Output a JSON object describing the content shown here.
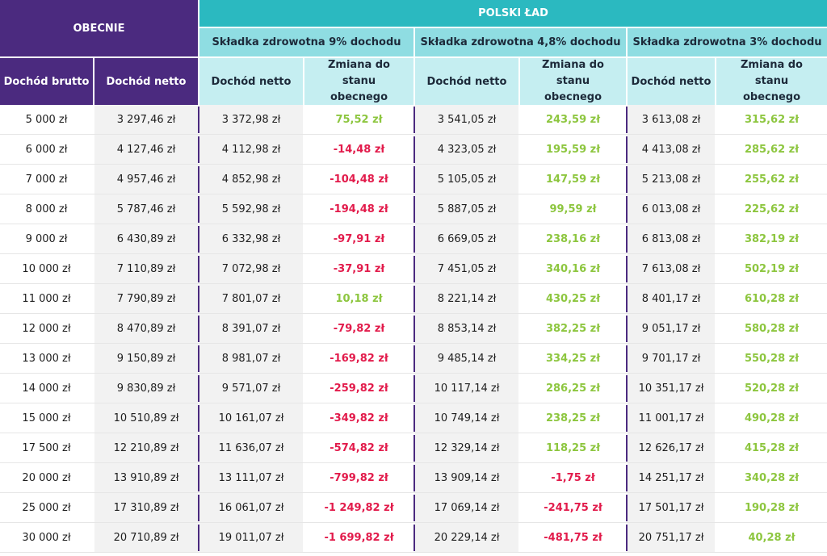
{
  "header": {
    "obecnie": "OBECNIE",
    "polski_lad": "POLSKI ŁAD",
    "group1": "Składka zdrowotna 9% dochodu",
    "group2": "Składka zdrowotna 4,8% dochodu",
    "group3": "Składka zdrowotna 3% dochodu",
    "col_brutto": "Dochód brutto",
    "col_netto": "Dochód netto",
    "col_netto_g1": "Dochód netto",
    "col_change_g1": "Zmiana do stanu obecnego",
    "col_netto_g2": "Dochód netto",
    "col_change_g2": "Zmiana do stanu obecnego",
    "col_netto_g3": "Dochód netto",
    "col_change_g3": "Zmiana do stanu obecnego"
  },
  "colors": {
    "purple": "#4b2a7f",
    "teal": "#2bb9c0",
    "positive": "#8dc63f",
    "negative": "#e21b4b"
  },
  "rows": [
    {
      "brutto": "5 000 zł",
      "netto": "3 297,46 zł",
      "n9": "3 372,98 zł",
      "d9": "75,52 zł",
      "n48": "3 541,05 zł",
      "d48": "243,59 zł",
      "n3": "3 613,08 zł",
      "d3": "315,62 zł"
    },
    {
      "brutto": "6 000 zł",
      "netto": "4 127,46 zł",
      "n9": "4 112,98 zł",
      "d9": "-14,48 zł",
      "n48": "4 323,05 zł",
      "d48": "195,59 zł",
      "n3": "4 413,08 zł",
      "d3": "285,62 zł"
    },
    {
      "brutto": "7 000 zł",
      "netto": "4 957,46 zł",
      "n9": "4 852,98 zł",
      "d9": "-104,48 zł",
      "n48": "5 105,05 zł",
      "d48": "147,59 zł",
      "n3": "5 213,08 zł",
      "d3": "255,62 zł"
    },
    {
      "brutto": "8 000 zł",
      "netto": "5 787,46 zł",
      "n9": "5 592,98 zł",
      "d9": "-194,48 zł",
      "n48": "5 887,05 zł",
      "d48": "99,59 zł",
      "n3": "6 013,08 zł",
      "d3": "225,62 zł"
    },
    {
      "brutto": "9 000 zł",
      "netto": "6 430,89 zł",
      "n9": "6 332,98 zł",
      "d9": "-97,91 zł",
      "n48": "6 669,05 zł",
      "d48": "238,16 zł",
      "n3": "6 813,08 zł",
      "d3": "382,19 zł"
    },
    {
      "brutto": "10 000 zł",
      "netto": "7 110,89 zł",
      "n9": "7 072,98 zł",
      "d9": "-37,91 zł",
      "n48": "7 451,05 zł",
      "d48": "340,16 zł",
      "n3": "7 613,08 zł",
      "d3": "502,19 zł"
    },
    {
      "brutto": "11 000 zł",
      "netto": "7 790,89 zł",
      "n9": "7 801,07 zł",
      "d9": "10,18 zł",
      "n48": "8 221,14 zł",
      "d48": "430,25 zł",
      "n3": "8 401,17 zł",
      "d3": "610,28 zł"
    },
    {
      "brutto": "12 000 zł",
      "netto": "8 470,89 zł",
      "n9": "8 391,07 zł",
      "d9": "-79,82 zł",
      "n48": "8 853,14 zł",
      "d48": "382,25 zł",
      "n3": "9 051,17 zł",
      "d3": "580,28 zł"
    },
    {
      "brutto": "13 000 zł",
      "netto": "9 150,89 zł",
      "n9": "8 981,07 zł",
      "d9": "-169,82 zł",
      "n48": "9 485,14 zł",
      "d48": "334,25 zł",
      "n3": "9 701,17 zł",
      "d3": "550,28 zł"
    },
    {
      "brutto": "14 000 zł",
      "netto": "9 830,89 zł",
      "n9": "9 571,07 zł",
      "d9": "-259,82 zł",
      "n48": "10 117,14 zł",
      "d48": "286,25 zł",
      "n3": "10 351,17 zł",
      "d3": "520,28 zł"
    },
    {
      "brutto": "15 000 zł",
      "netto": "10 510,89 zł",
      "n9": "10 161,07 zł",
      "d9": "-349,82 zł",
      "n48": "10 749,14 zł",
      "d48": "238,25 zł",
      "n3": "11 001,17 zł",
      "d3": "490,28 zł"
    },
    {
      "brutto": "17 500 zł",
      "netto": "12 210,89 zł",
      "n9": "11 636,07 zł",
      "d9": "-574,82 zł",
      "n48": "12 329,14 zł",
      "d48": "118,25 zł",
      "n3": "12 626,17 zł",
      "d3": "415,28 zł"
    },
    {
      "brutto": "20 000 zł",
      "netto": "13 910,89 zł",
      "n9": "13 111,07 zł",
      "d9": "-799,82 zł",
      "n48": "13 909,14 zł",
      "d48": "-1,75 zł",
      "n3": "14 251,17 zł",
      "d3": "340,28 zł"
    },
    {
      "brutto": "25 000 zł",
      "netto": "17 310,89 zł",
      "n9": "16 061,07 zł",
      "d9": "-1 249,82 zł",
      "n48": "17 069,14 zł",
      "d48": "-241,75 zł",
      "n3": "17 501,17 zł",
      "d3": "190,28 zł"
    },
    {
      "brutto": "30 000 zł",
      "netto": "20 710,89 zł",
      "n9": "19 011,07 zł",
      "d9": "-1 699,82 zł",
      "n48": "20 229,14 zł",
      "d48": "-481,75 zł",
      "n3": "20 751,17 zł",
      "d3": "40,28 zł"
    }
  ]
}
